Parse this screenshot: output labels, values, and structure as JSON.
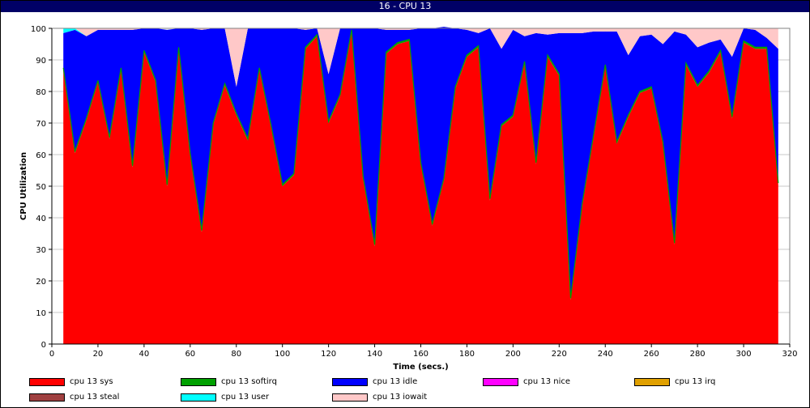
{
  "window": {
    "title": "16 - CPU 13"
  },
  "chart_data": {
    "type": "area",
    "stacked": true,
    "title": "16 - CPU 13",
    "xlabel": "Time (secs.)",
    "ylabel": "CPU Utilization",
    "xlim": [
      0,
      320
    ],
    "ylim": [
      0,
      100
    ],
    "xticks": [
      0,
      20,
      40,
      60,
      80,
      100,
      120,
      140,
      160,
      180,
      200,
      220,
      240,
      260,
      280,
      300,
      320
    ],
    "yticks": [
      0,
      10,
      20,
      30,
      40,
      50,
      60,
      70,
      80,
      90,
      100
    ],
    "grid": true,
    "legend_position": "bottom",
    "x": [
      5,
      10,
      15,
      20,
      25,
      30,
      35,
      40,
      45,
      50,
      55,
      60,
      65,
      70,
      75,
      80,
      85,
      90,
      95,
      100,
      105,
      110,
      115,
      120,
      125,
      130,
      135,
      140,
      145,
      150,
      155,
      160,
      165,
      170,
      175,
      180,
      185,
      190,
      195,
      200,
      205,
      210,
      215,
      220,
      225,
      230,
      235,
      240,
      245,
      250,
      255,
      260,
      265,
      270,
      275,
      280,
      285,
      290,
      295,
      300,
      305,
      310,
      315
    ],
    "series": [
      {
        "name": "cpu 13 sys",
        "color": "#ff0000",
        "values": [
          87,
          60.5,
          71,
          83,
          65,
          87,
          56,
          92.5,
          83,
          50,
          93.5,
          60,
          35.5,
          69.5,
          82,
          72.5,
          64.5,
          87,
          69,
          50,
          53.5,
          93.5,
          97.5,
          70,
          78.5,
          99,
          52.5,
          31,
          92,
          95,
          96,
          57,
          37.5,
          52,
          81,
          91,
          94,
          45.5,
          69,
          72,
          89,
          57,
          91,
          85,
          14,
          44,
          66,
          88,
          63.5,
          72,
          79.5,
          81,
          63.5,
          31.5,
          88.5,
          81.5,
          86,
          92.5,
          71.5,
          95.5,
          93.5,
          93.5,
          50.5
        ]
      },
      {
        "name": "cpu 13 softirq",
        "color": "#00a000",
        "values": [
          0.5,
          0.5,
          0.5,
          0.5,
          0.5,
          0.5,
          0.5,
          0.5,
          0.5,
          0.5,
          0.5,
          0.5,
          0.5,
          0.5,
          0.5,
          0.5,
          0.5,
          0.5,
          0.5,
          0.5,
          0.5,
          0.5,
          0.5,
          0.5,
          0.5,
          0.5,
          0.5,
          0.5,
          0.5,
          0.5,
          0.5,
          0.5,
          0.5,
          0.5,
          0.5,
          0.5,
          0.5,
          0.5,
          0.5,
          0.5,
          0.5,
          0.5,
          0.5,
          0.5,
          0.5,
          0.5,
          0.5,
          0.5,
          0.5,
          0.5,
          0.5,
          0.5,
          0.5,
          0.5,
          0.5,
          0.5,
          0.5,
          0.5,
          0.5,
          0.5,
          0.5,
          0.5,
          0.5
        ]
      },
      {
        "name": "cpu 13 idle",
        "color": "#0000ff",
        "values": [
          11,
          38.5,
          26,
          16,
          34,
          12,
          43,
          7,
          16.5,
          49,
          6,
          39.5,
          63.5,
          30,
          17.5,
          8.5,
          35,
          12.5,
          30.5,
          49.5,
          46,
          5.5,
          2,
          15,
          21,
          0.5,
          47,
          68.5,
          7,
          4,
          3,
          42.5,
          62,
          48,
          18.5,
          8,
          4,
          54,
          24,
          27,
          8,
          41,
          6.5,
          13,
          84,
          54,
          32.5,
          10.5,
          35,
          19,
          17.5,
          16.5,
          31,
          67,
          9,
          12,
          9,
          3.5,
          19,
          4,
          5.5,
          3,
          42.5
        ]
      },
      {
        "name": "cpu 13 nice",
        "color": "#ff00ff",
        "values": [
          0,
          0,
          0,
          0,
          0,
          0,
          0,
          0,
          0,
          0,
          0,
          0,
          0,
          0,
          0,
          0,
          0,
          0,
          0,
          0,
          0,
          0,
          0,
          0,
          0,
          0,
          0,
          0,
          0,
          0,
          0,
          0,
          0,
          0,
          0,
          0,
          0,
          0,
          0,
          0,
          0,
          0,
          0,
          0,
          0,
          0,
          0,
          0,
          0,
          0,
          0,
          0,
          0,
          0,
          0,
          0,
          0,
          0,
          0,
          0,
          0,
          0,
          0
        ]
      },
      {
        "name": "cpu 13 irq",
        "color": "#e0a000",
        "values": [
          0,
          0,
          0,
          0,
          0,
          0,
          0,
          0,
          0,
          0,
          0,
          0,
          0,
          0,
          0,
          0,
          0,
          0,
          0,
          0,
          0,
          0,
          0,
          0,
          0,
          0,
          0,
          0,
          0,
          0,
          0,
          0,
          0,
          0,
          0,
          0,
          0,
          0,
          0,
          0,
          0,
          0,
          0,
          0,
          0,
          0,
          0,
          0,
          0,
          0,
          0,
          0,
          0,
          0,
          0,
          0,
          0,
          0,
          0,
          0,
          0,
          0,
          0
        ]
      },
      {
        "name": "cpu 13 steal",
        "color": "#a04040",
        "values": [
          0,
          0,
          0,
          0,
          0,
          0,
          0,
          0,
          0,
          0,
          0,
          0,
          0,
          0,
          0,
          0,
          0,
          0,
          0,
          0,
          0,
          0,
          0,
          0,
          0,
          0,
          0,
          0,
          0,
          0,
          0,
          0,
          0,
          0,
          0,
          0,
          0,
          0,
          0,
          0,
          0,
          0,
          0,
          0,
          0,
          0,
          0,
          0,
          0,
          0,
          0,
          0,
          0,
          0,
          0,
          0,
          0,
          0,
          0,
          0,
          0,
          0,
          0
        ]
      },
      {
        "name": "cpu 13 user",
        "color": "#00ffff",
        "values": [
          1.5,
          0.5,
          0,
          0,
          0,
          0,
          0,
          0,
          0,
          0,
          0,
          0,
          0,
          0,
          0,
          0,
          0,
          0,
          0,
          0,
          0,
          0,
          0,
          0,
          0,
          0,
          0,
          0,
          0,
          0,
          0,
          0,
          0,
          0,
          0,
          0,
          0,
          0,
          0,
          0,
          0,
          0,
          0,
          0,
          0,
          0,
          0,
          0,
          0,
          0,
          0,
          0,
          0,
          0,
          0,
          0,
          0,
          0,
          0,
          0,
          0,
          0,
          0
        ]
      },
      {
        "name": "cpu 13 iowait",
        "color": "#ffc8c8",
        "values": [
          0,
          0,
          2.5,
          0.5,
          0.5,
          0.5,
          0.5,
          0,
          0,
          0,
          0,
          0,
          0.5,
          0,
          0,
          18.5,
          0,
          0,
          0,
          0,
          0,
          0.5,
          0,
          14.5,
          0,
          0,
          0,
          0,
          0.5,
          0.5,
          0.5,
          0,
          0,
          0,
          0,
          0.5,
          1.5,
          0,
          6.5,
          0.5,
          2.5,
          1.5,
          2,
          1.5,
          1.5,
          1.5,
          1,
          1,
          1,
          8.5,
          2.5,
          2,
          5,
          1,
          2,
          6,
          4.5,
          3.5,
          9,
          0,
          0.5,
          3,
          6.5
        ]
      }
    ]
  }
}
